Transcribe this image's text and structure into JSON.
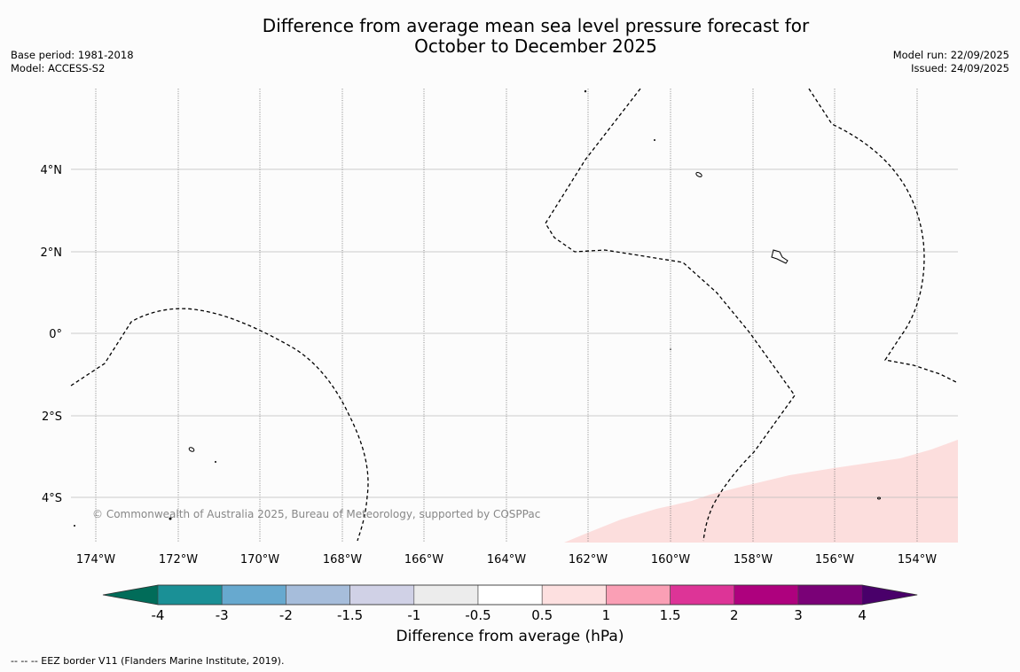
{
  "title": {
    "line1": "Difference from average mean sea level pressure forecast for",
    "line2": "October to December 2025"
  },
  "meta_left": {
    "base_period": "Base period: 1981-2018",
    "model": "Model: ACCESS-S2"
  },
  "meta_right": {
    "model_run": "Model run: 22/09/2025",
    "issued": "Issued: 24/09/2025"
  },
  "map": {
    "lon_ticks": [
      "174°W",
      "172°W",
      "170°W",
      "168°W",
      "166°W",
      "164°W",
      "162°W",
      "160°W",
      "158°W",
      "156°W",
      "154°W"
    ],
    "lat_ticks": [
      "4°N",
      "2°N",
      "0°",
      "2°S",
      "4°S"
    ],
    "copyright": "© Commonwealth of Australia 2025, Bureau of Meteorology, supported by COSPPac",
    "anomaly_fill_color": "#fcdedd",
    "eez_line_color": "#000000"
  },
  "colorbar": {
    "ticks": [
      "-4",
      "-3",
      "-2",
      "-1.5",
      "-1",
      "-0.5",
      "0.5",
      "1",
      "1.5",
      "2",
      "3",
      "4"
    ],
    "colors": [
      "#016c59",
      "#1a9096",
      "#67a9cf",
      "#a6bddb",
      "#d0d1e6",
      "#ececec",
      "#ffffff",
      "#fde0e0",
      "#fa9fb5",
      "#dd3497",
      "#ae017e",
      "#7a0177",
      "#49006a"
    ],
    "label": "Difference from average (hPa)"
  },
  "footnote": "--  --  -- EEZ border V11 (Flanders Marine Institute, 2019)."
}
